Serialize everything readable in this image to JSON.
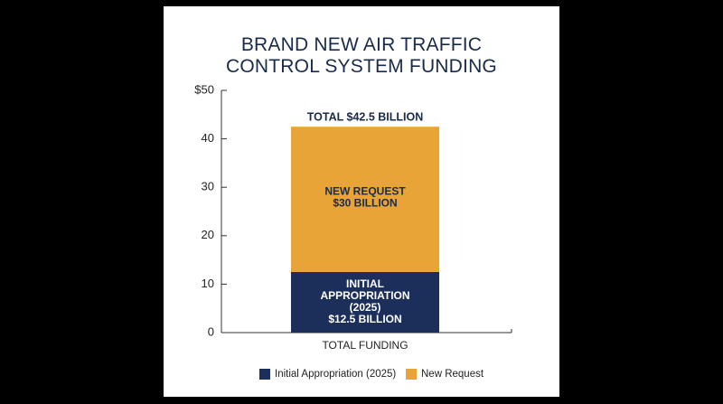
{
  "chart_data": {
    "type": "bar",
    "stacked": true,
    "title_lines": [
      "BRAND NEW AIR TRAFFIC",
      "CONTROL SYSTEM FUNDING"
    ],
    "categories": [
      "TOTAL FUNDING"
    ],
    "series": [
      {
        "name": "Initial Appropriation (2025)",
        "values": [
          12.5
        ],
        "color": "#1c2f5a",
        "label_lines": [
          "INITIAL",
          "APPROPRIATION",
          "(2025)",
          "$12.5 BILLION"
        ]
      },
      {
        "name": "New Request",
        "values": [
          30
        ],
        "color": "#e8a436",
        "label_lines": [
          "NEW REQUEST",
          "$30 BILLION"
        ]
      }
    ],
    "total_label": "TOTAL $42.5 BILLION",
    "ylim": [
      0,
      50
    ],
    "yticks": [
      0,
      10,
      20,
      30,
      40,
      50
    ],
    "ytick_labels": [
      "0",
      "10",
      "20",
      "30",
      "40",
      "$50"
    ],
    "grid": false,
    "legend_position": "bottom"
  }
}
